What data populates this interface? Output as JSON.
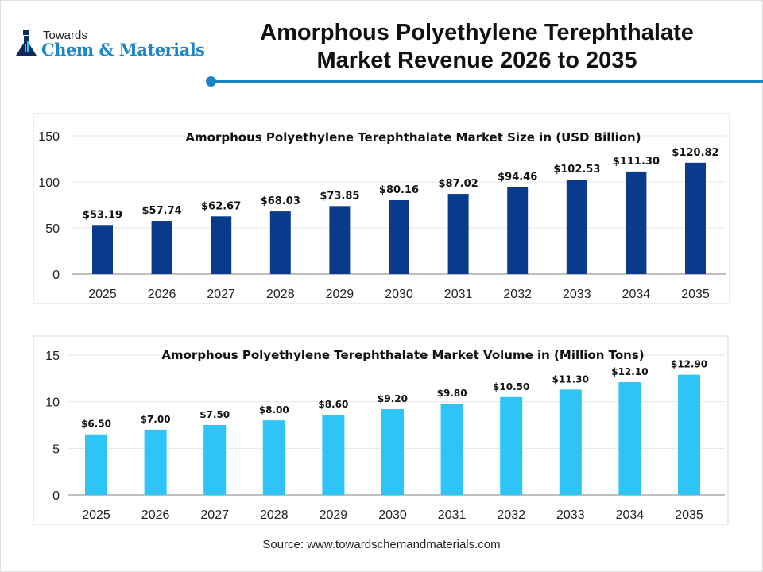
{
  "logo": {
    "line1": "Towards",
    "line2": "Chem & Materials"
  },
  "header": {
    "title": "Amorphous Polyethylene Terephthalate Market Revenue 2026 to 2035"
  },
  "source": "Source: www.towardschemandmaterials.com",
  "colors": {
    "accent": "#1a86c8",
    "revenue_bar": "#0a3a8c",
    "volume_bar": "#2ec4f5"
  },
  "chart_data": [
    {
      "type": "bar",
      "title": "Amorphous Polyethylene Terephthalate Market Size in (USD Billion)",
      "categories": [
        "2025",
        "2026",
        "2027",
        "2028",
        "2029",
        "2030",
        "2031",
        "2032",
        "2033",
        "2034",
        "2035"
      ],
      "values": [
        53.19,
        57.74,
        62.67,
        68.03,
        73.85,
        80.16,
        87.02,
        94.46,
        102.53,
        111.3,
        120.82
      ],
      "data_labels": [
        "$53.19",
        "$57.74",
        "$62.67",
        "$68.03",
        "$73.85",
        "$80.16",
        "$87.02",
        "$94.46",
        "$102.53",
        "$111.30",
        "$120.82"
      ],
      "yticks": [
        "0",
        "50",
        "100",
        "150"
      ],
      "ylim": [
        0,
        150
      ],
      "grid": true,
      "color": "#0a3a8c"
    },
    {
      "type": "bar",
      "title": "Amorphous Polyethylene Terephthalate Market Volume in (Million Tons)",
      "categories": [
        "2025",
        "2026",
        "2027",
        "2028",
        "2029",
        "2030",
        "2031",
        "2032",
        "2033",
        "2034",
        "2035"
      ],
      "values": [
        6.5,
        7.0,
        7.5,
        8.0,
        8.6,
        9.2,
        9.8,
        10.5,
        11.3,
        12.1,
        12.9
      ],
      "data_labels": [
        "$6.50",
        "$7.00",
        "$7.50",
        "$8.00",
        "$8.60",
        "$9.20",
        "$9.80",
        "$10.50",
        "$11.30",
        "$12.10",
        "$12.90"
      ],
      "yticks": [
        "0",
        "5",
        "10",
        "15"
      ],
      "ylim": [
        0,
        15
      ],
      "grid": true,
      "color": "#2ec4f5"
    }
  ]
}
